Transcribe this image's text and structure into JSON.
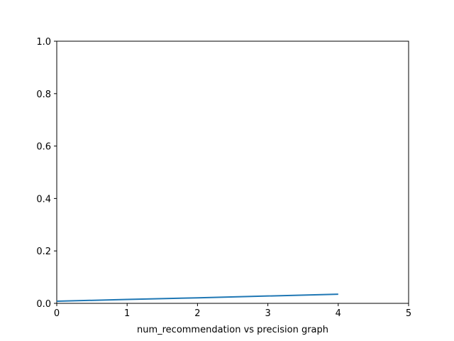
{
  "chart_data": {
    "type": "line",
    "title": "",
    "xlabel": "num_recommendation vs precision graph",
    "ylabel": "",
    "xlim": [
      0,
      5
    ],
    "ylim": [
      0,
      1
    ],
    "x_ticks": [
      0,
      1,
      2,
      3,
      4,
      5
    ],
    "y_ticks": [
      0.0,
      0.2,
      0.4,
      0.6,
      0.8,
      1.0
    ],
    "x_tick_labels": [
      "0",
      "1",
      "2",
      "3",
      "4",
      "5"
    ],
    "y_tick_labels": [
      "0.0",
      "0.2",
      "0.4",
      "0.6",
      "0.8",
      "1.0"
    ],
    "grid": false,
    "series": [
      {
        "color": "#1f77b4",
        "x": [
          0,
          1,
          2,
          3,
          4
        ],
        "y": [
          0.008,
          0.015,
          0.021,
          0.028,
          0.035
        ]
      }
    ]
  }
}
